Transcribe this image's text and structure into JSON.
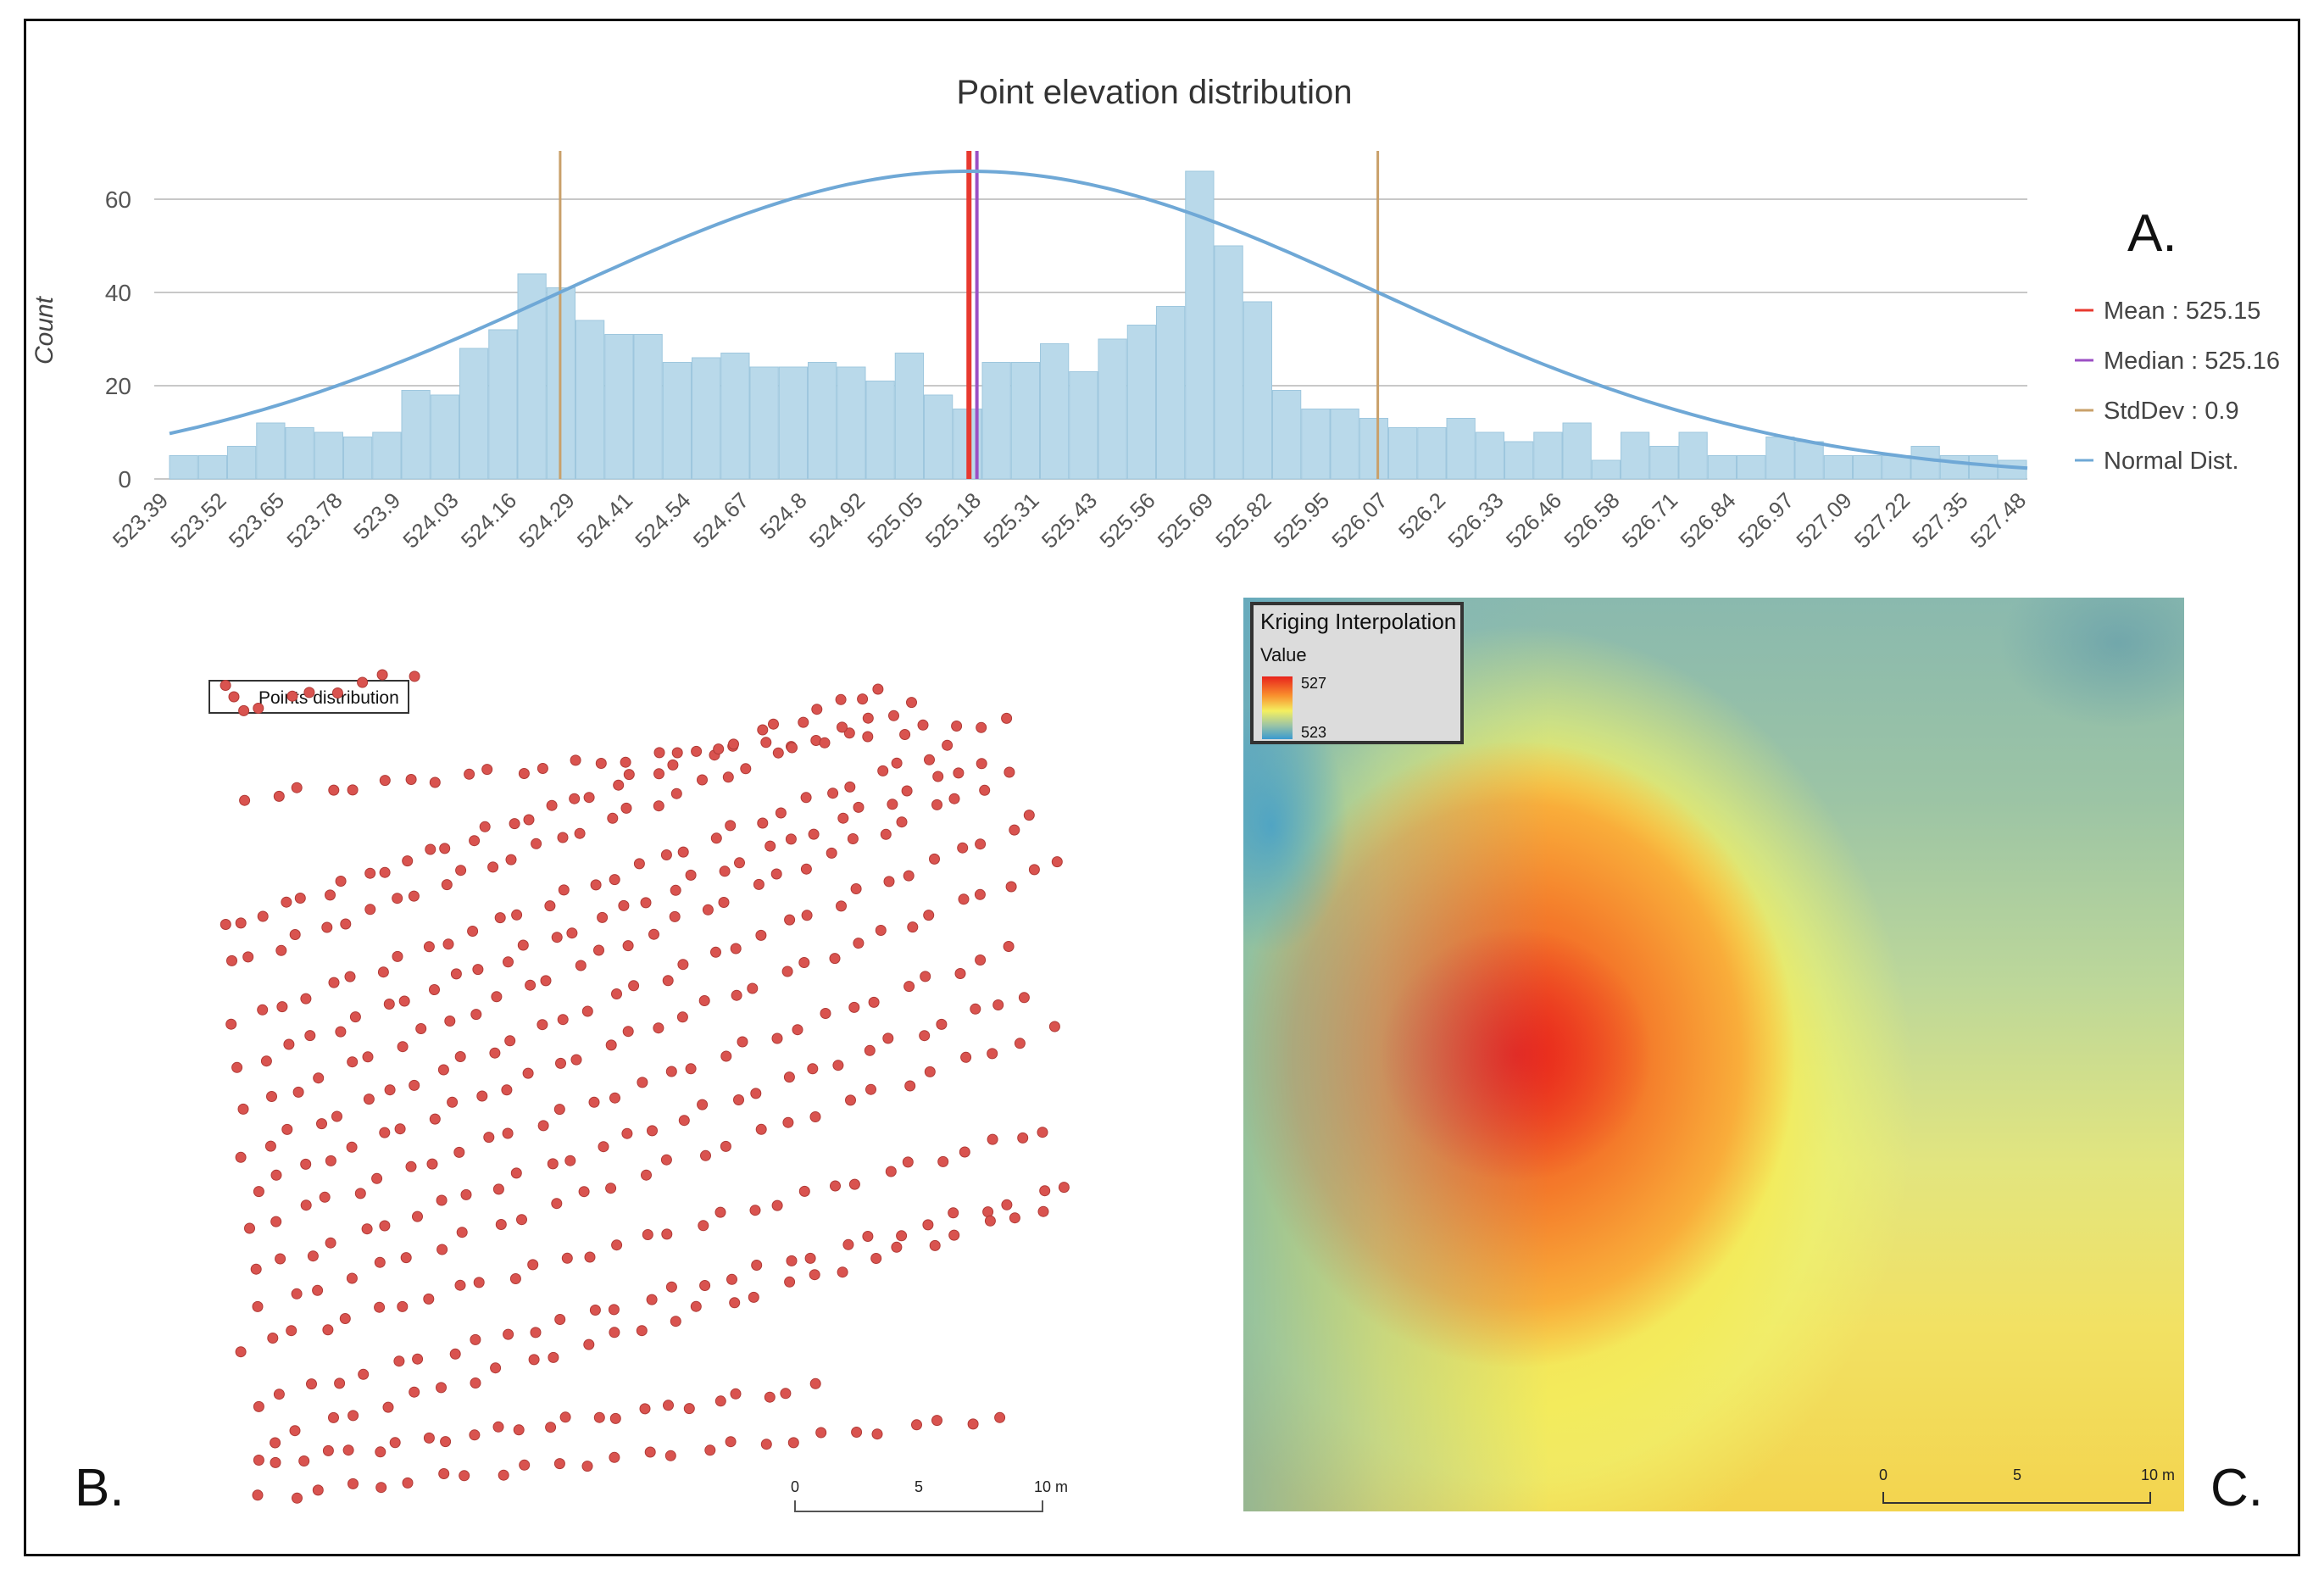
{
  "chart_data": {
    "type": "bar",
    "title": "Point elevation distribution",
    "ylabel": "Count",
    "xlabel": "",
    "ylim": [
      0,
      70
    ],
    "yticks": [
      0,
      20,
      40,
      60
    ],
    "xlim": [
      523.39,
      527.48
    ],
    "tick_labels": [
      "523.39",
      "523.52",
      "523.65",
      "523.78",
      "523.9",
      "524.03",
      "524.16",
      "524.29",
      "524.41",
      "524.54",
      "524.67",
      "524.8",
      "524.92",
      "525.05",
      "525.18",
      "525.31",
      "525.43",
      "525.56",
      "525.69",
      "525.82",
      "525.95",
      "526.07",
      "526.2",
      "526.33",
      "526.46",
      "526.58",
      "526.71",
      "526.84",
      "526.97",
      "527.09",
      "527.22",
      "527.35",
      "527.48"
    ],
    "values": [
      5,
      5,
      7,
      12,
      11,
      10,
      9,
      10,
      19,
      18,
      28,
      32,
      44,
      41,
      34,
      31,
      31,
      25,
      26,
      27,
      24,
      24,
      25,
      24,
      21,
      27,
      18,
      15,
      25,
      25,
      29,
      23,
      30,
      33,
      37,
      66,
      50,
      38,
      19,
      15,
      15,
      13,
      11,
      11,
      13,
      10,
      8,
      10,
      12,
      4,
      10,
      7,
      10,
      5,
      5,
      9,
      8,
      5,
      5,
      5,
      7,
      5,
      5,
      4
    ],
    "series": [
      {
        "name": "Mean : 525.15",
        "value": 525.15,
        "color": "#e8392f"
      },
      {
        "name": "Median : 525.16",
        "value": 525.16,
        "color": "#9b4fc4"
      },
      {
        "name": "StdDev : 0.9",
        "value": 0.9,
        "color": "#c9a06a"
      },
      {
        "name": "Normal Dist.",
        "color": "#6fa8d6"
      }
    ],
    "stddev_lines": [
      524.25,
      526.05
    ],
    "normal_peak": 66,
    "legend_position": "right"
  },
  "panel_letters": {
    "a": "A.",
    "b": "B.",
    "c": "C."
  },
  "points_map": {
    "legend_label": "Points distribution",
    "point_color": "#d9534f",
    "scale": {
      "labels": [
        "0",
        "5",
        "10 m"
      ]
    }
  },
  "kriging_map": {
    "legend_title": "Kriging Interpolation",
    "legend_sub": "Value",
    "max_label": "527",
    "min_label": "523",
    "scale": {
      "labels": [
        "0",
        "5",
        "10 m"
      ]
    }
  },
  "colors": {
    "bar": "#b9d9ea",
    "bar_edge": "#9ec7de",
    "grid": "#c8c8c8",
    "axis_text": "#555555"
  }
}
